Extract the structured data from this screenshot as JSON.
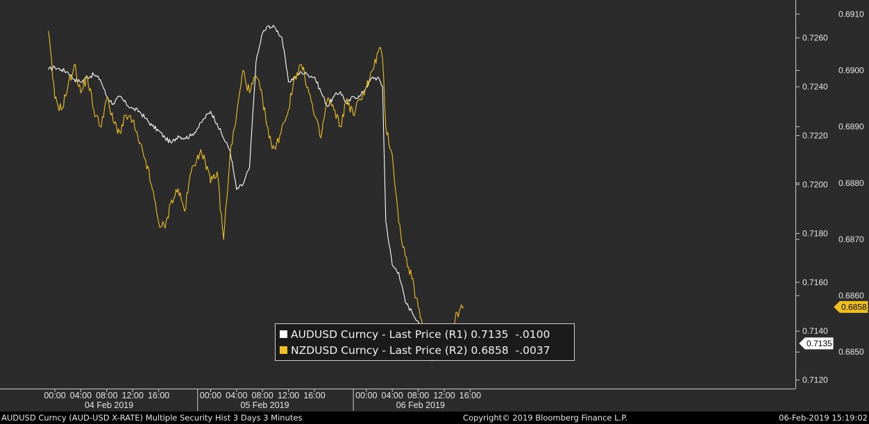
{
  "chart_data": {
    "type": "line",
    "x_range": [
      "04 Feb 2019 00:00",
      "06 Feb 2019 16:00"
    ],
    "x_tick_labels": [
      "00:00",
      "04:00",
      "08:00",
      "12:00",
      "16:00",
      "00:00",
      "04:00",
      "08:00",
      "12:00",
      "16:00",
      "00:00",
      "04:00",
      "08:00",
      "12:00",
      "16:00"
    ],
    "x_day_labels": [
      "04 Feb 2019",
      "05 Feb 2019",
      "06 Feb 2019"
    ],
    "axes": {
      "r1": {
        "ticks": [
          "0.7260",
          "0.7240",
          "0.7220",
          "0.7200",
          "0.7180",
          "0.7160",
          "0.7140",
          "0.7120"
        ],
        "ylim": [
          0.71165,
          0.72755
        ]
      },
      "r2": {
        "ticks": [
          "0.6910",
          "0.6900",
          "0.6890",
          "0.6880",
          "0.6870",
          "0.6860",
          "0.6850"
        ],
        "ylim": [
          0.68435,
          0.69125
        ]
      }
    },
    "series": [
      {
        "name": "AUDUSD Curncy - Last Price (R1)",
        "axis": "r1",
        "color": "#ffffff",
        "last": "0.7135",
        "change": "-.0100",
        "x": [
          "02-03 23:00",
          "02-04 00:00",
          "02-04 01:00",
          "02-04 02:00",
          "02-04 03:00",
          "02-04 04:00",
          "02-04 05:00",
          "02-04 06:00",
          "02-04 07:00",
          "02-04 08:00",
          "02-04 09:00",
          "02-04 10:00",
          "02-04 11:00",
          "02-04 12:00",
          "02-04 13:00",
          "02-04 14:00",
          "02-04 15:00",
          "02-04 16:00",
          "02-04 17:00",
          "02-04 18:00",
          "02-04 19:00",
          "02-04 20:00",
          "02-04 21:00",
          "02-04 22:00",
          "02-04 23:00",
          "02-05 00:00",
          "02-05 01:00",
          "02-05 02:00",
          "02-05 03:00",
          "02-05 04:00",
          "02-05 05:00",
          "02-05 06:00",
          "02-05 07:00",
          "02-05 08:00",
          "02-05 09:00",
          "02-05 10:00",
          "02-05 11:00",
          "02-05 12:00",
          "02-05 13:00",
          "02-05 14:00",
          "02-05 15:00",
          "02-05 16:00",
          "02-05 17:00",
          "02-05 18:00",
          "02-05 19:00",
          "02-05 20:00",
          "02-05 21:00",
          "02-05 22:00",
          "02-05 23:00",
          "02-06 00:00",
          "02-06 01:00",
          "02-06 02:00",
          "02-06 02:30",
          "02-06 03:00",
          "02-06 04:00",
          "02-06 05:00",
          "02-06 06:00",
          "02-06 07:00",
          "02-06 08:00",
          "02-06 09:00",
          "02-06 10:00",
          "02-06 11:00",
          "02-06 12:00",
          "02-06 13:00",
          "02-06 14:00",
          "02-06 15:00"
        ],
        "values": [
          0.7247,
          0.7248,
          0.7247,
          0.7246,
          0.7243,
          0.7242,
          0.7244,
          0.7245,
          0.7243,
          0.7236,
          0.7233,
          0.7236,
          0.7233,
          0.7231,
          0.723,
          0.7227,
          0.7224,
          0.7222,
          0.7219,
          0.7217,
          0.722,
          0.7219,
          0.722,
          0.7223,
          0.7227,
          0.723,
          0.7225,
          0.7219,
          0.7214,
          0.7198,
          0.72,
          0.7207,
          0.725,
          0.7262,
          0.7265,
          0.7264,
          0.726,
          0.7242,
          0.7244,
          0.7246,
          0.7245,
          0.7244,
          0.7238,
          0.7232,
          0.7236,
          0.7238,
          0.7233,
          0.7236,
          0.7236,
          0.724,
          0.7244,
          0.7243,
          0.724,
          0.7185,
          0.7167,
          0.7164,
          0.7152,
          0.7148,
          0.7144,
          0.7137,
          0.7128,
          0.7131,
          0.7133,
          0.713,
          0.7137,
          0.7135
        ]
      },
      {
        "name": "NZDUSD Curncy - Last Price (R2)",
        "axis": "r2",
        "color": "#f0c020",
        "last": "0.6858",
        "change": "-.0037",
        "x": [
          "02-03 23:00",
          "02-04 00:00",
          "02-04 01:00",
          "02-04 02:00",
          "02-04 03:00",
          "02-04 04:00",
          "02-04 05:00",
          "02-04 06:00",
          "02-04 07:00",
          "02-04 08:00",
          "02-04 09:00",
          "02-04 10:00",
          "02-04 11:00",
          "02-04 12:00",
          "02-04 13:00",
          "02-04 14:00",
          "02-04 15:00",
          "02-04 16:00",
          "02-04 17:00",
          "02-04 18:00",
          "02-04 19:00",
          "02-04 20:00",
          "02-04 21:00",
          "02-04 22:00",
          "02-04 23:00",
          "02-05 00:00",
          "02-05 01:00",
          "02-05 02:00",
          "02-05 03:00",
          "02-05 04:00",
          "02-05 05:00",
          "02-05 06:00",
          "02-05 07:00",
          "02-05 08:00",
          "02-05 09:00",
          "02-05 10:00",
          "02-05 11:00",
          "02-05 12:00",
          "02-05 13:00",
          "02-05 14:00",
          "02-05 15:00",
          "02-05 16:00",
          "02-05 17:00",
          "02-05 18:00",
          "02-05 19:00",
          "02-05 20:00",
          "02-05 21:00",
          "02-05 22:00",
          "02-05 23:00",
          "02-06 00:00",
          "02-06 01:00",
          "02-06 02:00",
          "02-06 02:30",
          "02-06 03:00",
          "02-06 04:00",
          "02-06 05:00",
          "02-06 06:00",
          "02-06 07:00",
          "02-06 08:00",
          "02-06 09:00",
          "02-06 10:00",
          "02-06 11:00",
          "02-06 12:00",
          "02-06 13:00",
          "02-06 14:00",
          "02-06 15:00"
        ],
        "values": [
          0.6907,
          0.6895,
          0.6893,
          0.6897,
          0.6901,
          0.6896,
          0.6899,
          0.6893,
          0.689,
          0.6895,
          0.6891,
          0.6889,
          0.6892,
          0.6891,
          0.6887,
          0.6884,
          0.6879,
          0.6873,
          0.6872,
          0.6877,
          0.6879,
          0.6875,
          0.6882,
          0.6885,
          0.6885,
          0.688,
          0.6882,
          0.687,
          0.6885,
          0.6892,
          0.69,
          0.6896,
          0.6899,
          0.6895,
          0.6888,
          0.6886,
          0.689,
          0.6893,
          0.6899,
          0.6901,
          0.6897,
          0.6892,
          0.6888,
          0.6895,
          0.6893,
          0.689,
          0.6895,
          0.6892,
          0.6895,
          0.6897,
          0.69,
          0.6904,
          0.6902,
          0.689,
          0.6885,
          0.6873,
          0.6867,
          0.6863,
          0.6858,
          0.6852,
          0.685,
          0.6855,
          0.6854,
          0.6852,
          0.6857,
          0.6858
        ]
      }
    ]
  },
  "footer": {
    "left": "AUDUSD Curncy (AUD-USD X-RATE) Multiple Security Hist  3 Days 3 Minutes",
    "center": "Copyright© 2019 Bloomberg Finance L.P.",
    "right": "06-Feb-2019 15:19:02"
  },
  "colors": {
    "background": "#2b2b2b",
    "aud": "#ffffff",
    "nzd": "#f0c020"
  }
}
